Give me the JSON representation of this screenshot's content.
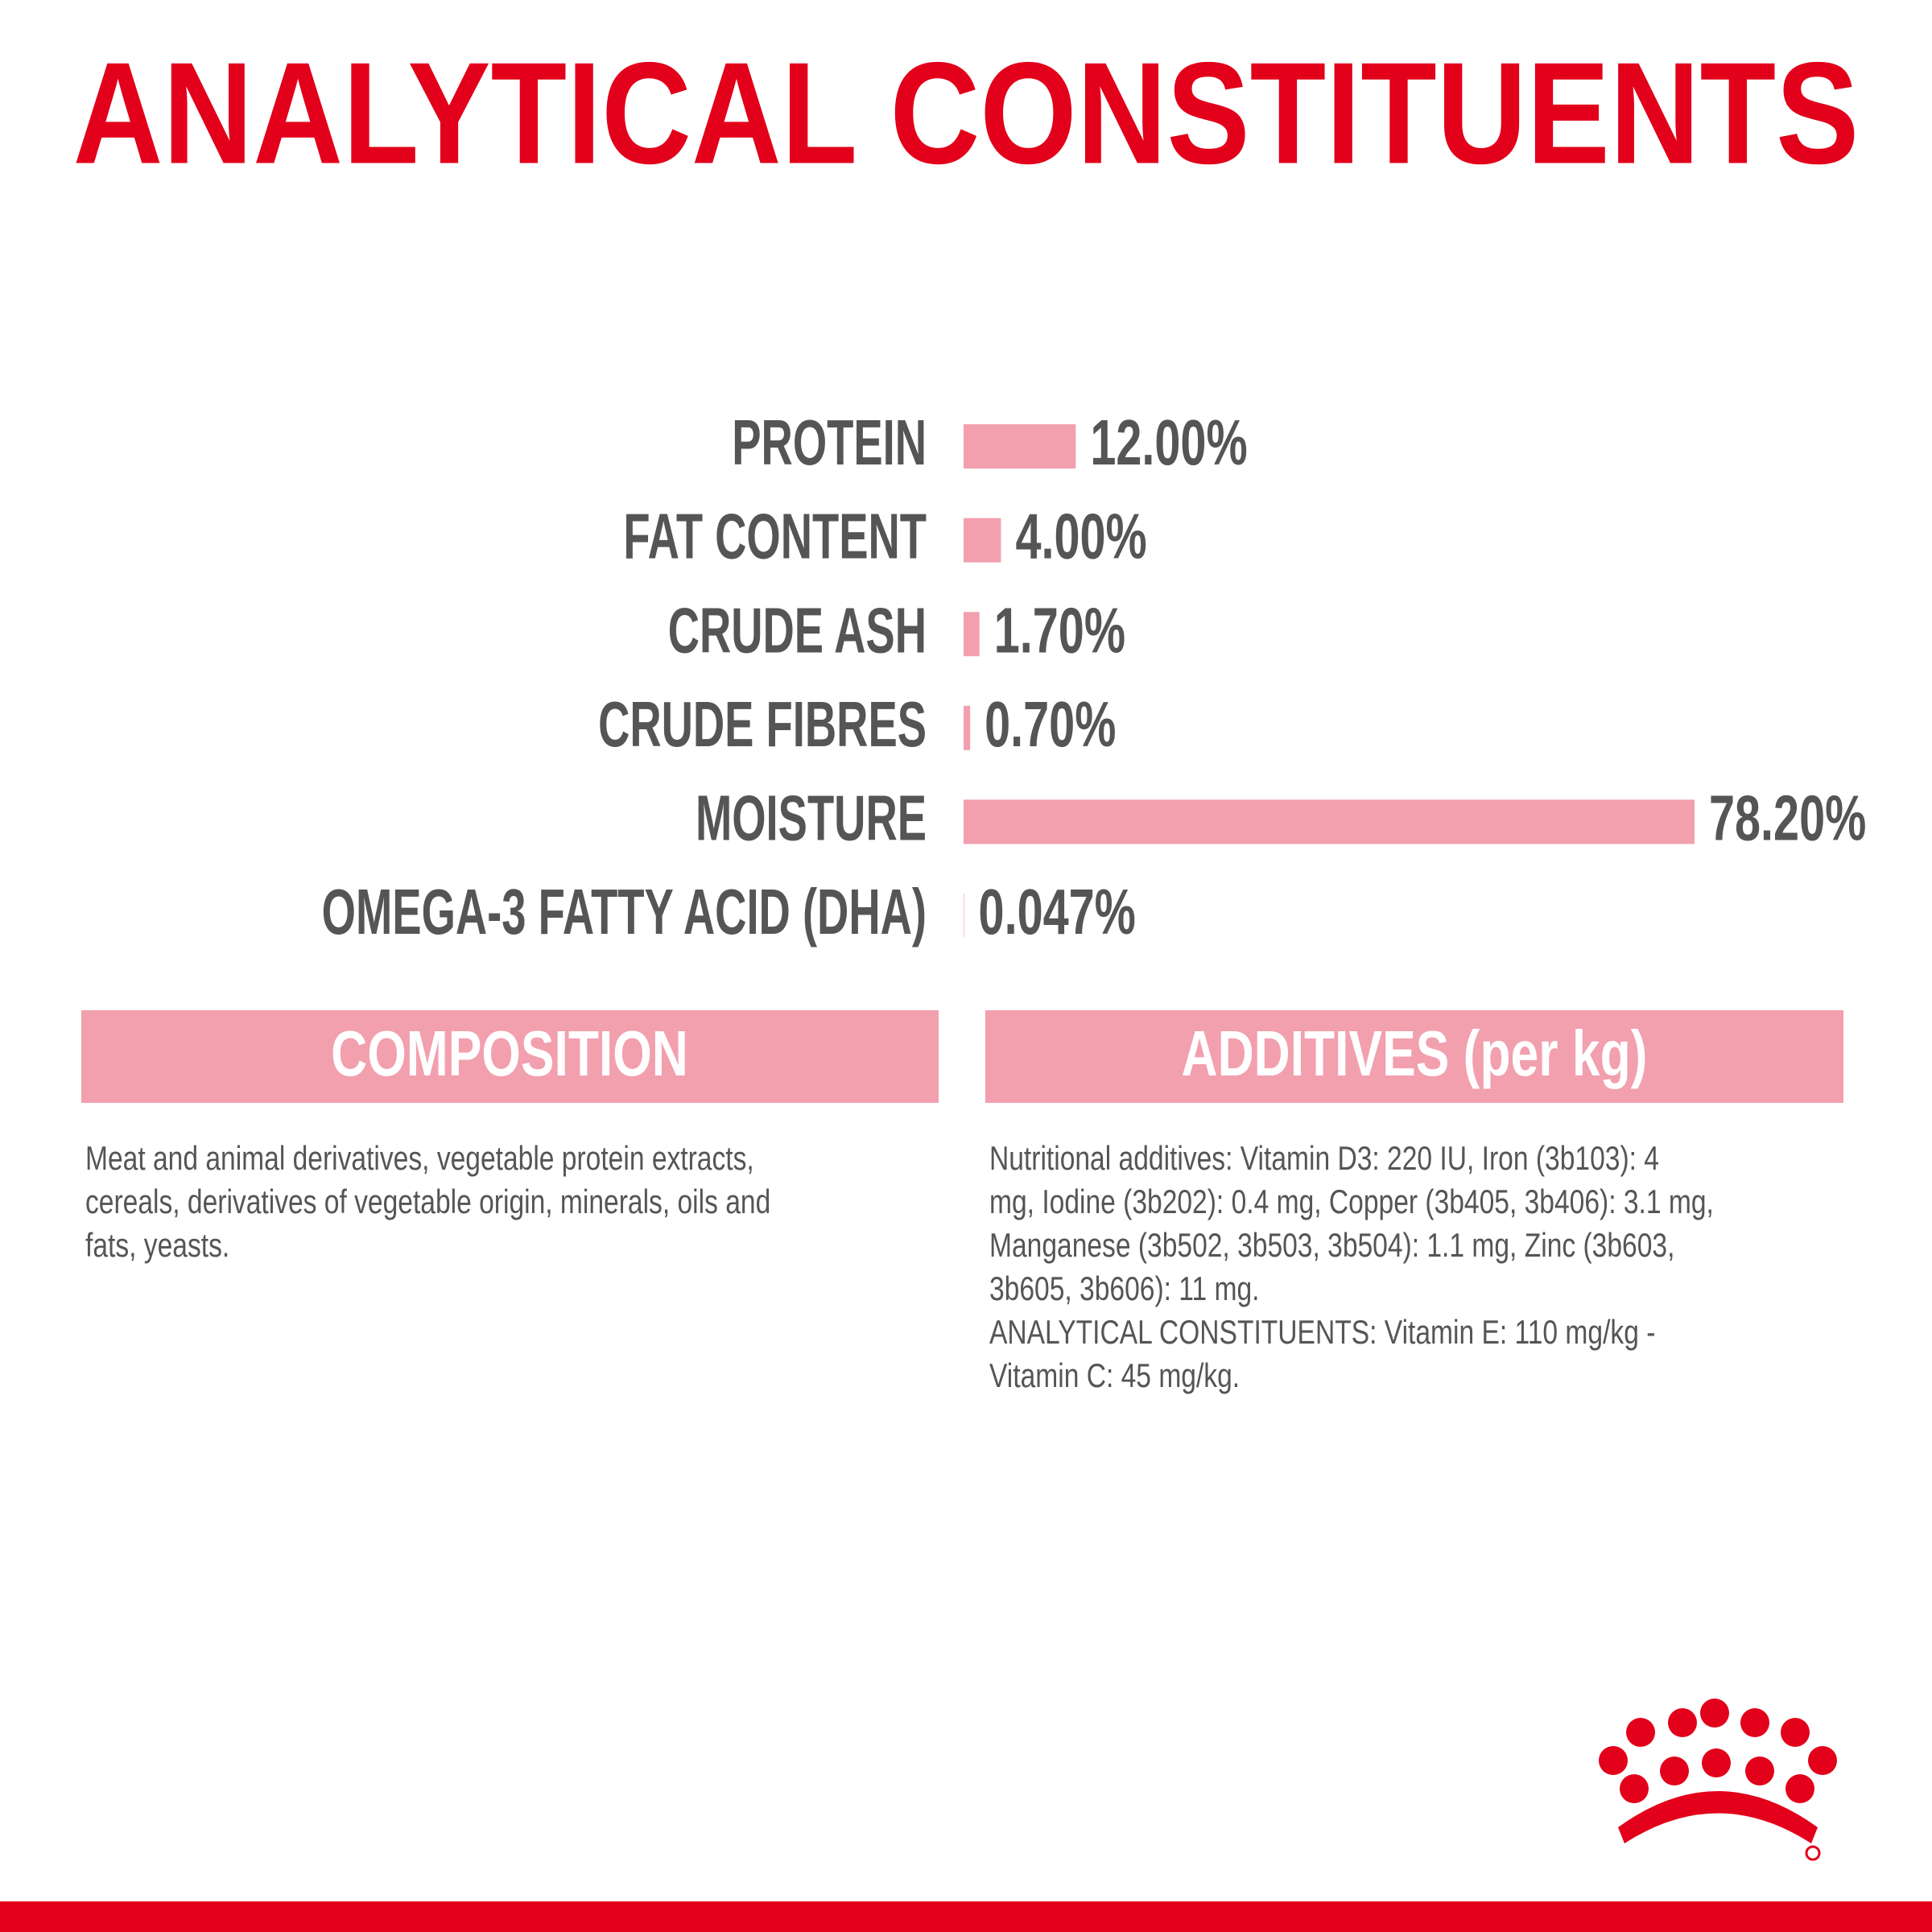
{
  "chart_data": {
    "type": "bar",
    "orientation": "horizontal",
    "title": "ANALYTICAL CONSTITUENTS",
    "categories": [
      "PROTEIN",
      "FAT CONTENT",
      "CRUDE ASH",
      "CRUDE FIBRES",
      "MOISTURE",
      "OMEGA-3 FATTY ACID (DHA)"
    ],
    "values": [
      12.0,
      4.0,
      1.7,
      0.7,
      78.2,
      0.047
    ],
    "value_labels": [
      "12.00%",
      "4.00%",
      "1.70%",
      "0.70%",
      "78.20%",
      "0.047%"
    ],
    "color": "#f29fae"
  },
  "composition": {
    "title": "COMPOSITION",
    "lines": [
      "Meat and animal derivatives, vegetable protein extracts,",
      "cereals, derivatives of vegetable origin, minerals, oils and",
      "fats, yeasts."
    ]
  },
  "additives": {
    "title": "ADDITIVES (per kg)",
    "lines": [
      "Nutritional additives: Vitamin D3: 220 IU, Iron (3b103): 4",
      "mg, Iodine (3b202): 0.4 mg, Copper (3b405, 3b406): 3.1 mg,",
      "Manganese (3b502, 3b503, 3b504): 1.1 mg, Zinc (3b603,",
      "3b605, 3b606): 11 mg.",
      "ANALYTICAL CONSTITUENTS: Vitamin E: 110 mg/kg -",
      "Vitamin C: 45 mg/kg."
    ]
  }
}
